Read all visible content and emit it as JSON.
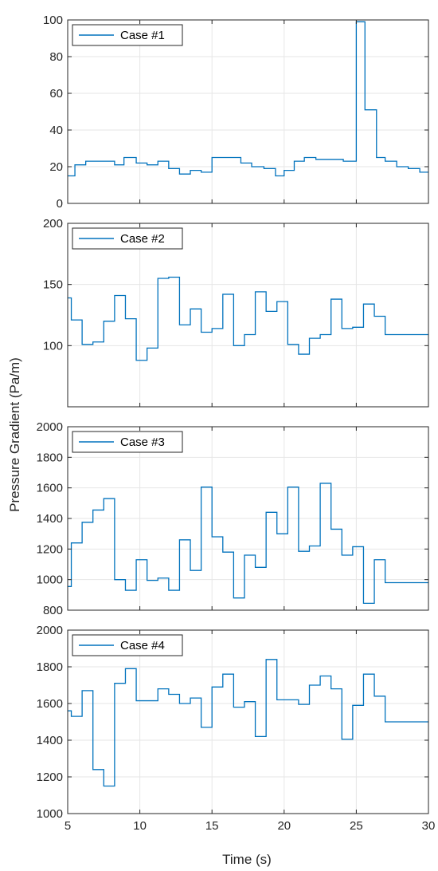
{
  "figure": {
    "ylabel": "Pressure Gradient (Pa/m)",
    "xlabel": "Time (s)",
    "line_color": "#0072BD",
    "grid_color": "#e6e6e6",
    "axis_color": "#262626"
  },
  "chart_data": [
    {
      "type": "line",
      "legend": "Case #1",
      "legend_position": "top-left",
      "grid": true,
      "xlim": [
        5,
        30
      ],
      "ylim": [
        0,
        100
      ],
      "xticks": [
        5,
        10,
        15,
        20,
        25,
        30
      ],
      "yticks": [
        0,
        20,
        40,
        60,
        80,
        100
      ],
      "series": [
        {
          "name": "Case #1",
          "step": true,
          "x": [
            5,
            5.5,
            6.25,
            7.75,
            8.25,
            8.9,
            9.75,
            10.5,
            11.25,
            12,
            12.75,
            13.5,
            14.25,
            15,
            15.75,
            17,
            17.75,
            18.6,
            19.4,
            20,
            20.7,
            21.4,
            22.2,
            23,
            24.1,
            25,
            25.6,
            26.4,
            27,
            27.8,
            28.6,
            29.4,
            30
          ],
          "y": [
            15,
            21,
            23,
            23,
            21,
            25,
            22,
            21,
            23,
            19,
            16,
            18,
            17,
            25,
            25,
            22,
            20,
            19,
            15,
            18,
            23,
            25,
            24,
            24,
            23,
            99,
            51,
            25,
            23,
            20,
            19,
            17,
            17
          ]
        }
      ]
    },
    {
      "type": "line",
      "legend": "Case #2",
      "legend_position": "top-left",
      "grid": true,
      "xlim": [
        5,
        30
      ],
      "ylim": [
        50,
        200
      ],
      "xticks": [
        5,
        10,
        15,
        20,
        25,
        30
      ],
      "yticks": [
        100,
        150,
        200
      ],
      "series": [
        {
          "name": "Case #2",
          "step": true,
          "x": [
            5,
            5.25,
            6,
            6.75,
            7.5,
            8.25,
            9,
            9.75,
            10.5,
            11.25,
            12,
            12.75,
            13.5,
            14.25,
            15,
            15.75,
            16.5,
            17.25,
            18,
            18.75,
            19.5,
            20.25,
            21,
            21.75,
            22.5,
            23.25,
            24,
            24.75,
            25.5,
            26.25,
            27,
            27.75,
            28.5,
            29.25,
            30
          ],
          "y": [
            139,
            121,
            101,
            103,
            120,
            141,
            122,
            88,
            98,
            155,
            156,
            117,
            130,
            111,
            114,
            142,
            100,
            109,
            144,
            128,
            136,
            101,
            93,
            106,
            109,
            138,
            114,
            115,
            134,
            124,
            109,
            109,
            109,
            109,
            109
          ]
        }
      ]
    },
    {
      "type": "line",
      "legend": "Case #3",
      "legend_position": "top-left",
      "grid": true,
      "xlim": [
        5,
        30
      ],
      "ylim": [
        800,
        2000
      ],
      "xticks": [
        5,
        10,
        15,
        20,
        25,
        30
      ],
      "yticks": [
        800,
        1000,
        1200,
        1400,
        1600,
        1800,
        2000
      ],
      "series": [
        {
          "name": "Case #3",
          "step": true,
          "x": [
            5,
            5.25,
            6,
            6.75,
            7.5,
            8.25,
            9,
            9.75,
            10.5,
            11.25,
            12,
            12.75,
            13.5,
            14.25,
            15,
            15.75,
            16.5,
            17.25,
            18,
            18.75,
            19.5,
            20.25,
            21,
            21.75,
            22.5,
            23.25,
            24,
            24.75,
            25.5,
            26.25,
            27,
            27.75,
            28.5,
            29.25,
            30
          ],
          "y": [
            955,
            1240,
            1375,
            1455,
            1530,
            1000,
            930,
            1130,
            995,
            1010,
            930,
            1260,
            1060,
            1605,
            1280,
            1180,
            880,
            1160,
            1080,
            1440,
            1300,
            1605,
            1185,
            1220,
            1630,
            1330,
            1160,
            1215,
            845,
            1130,
            980,
            980,
            980,
            980,
            980
          ]
        }
      ]
    },
    {
      "type": "line",
      "legend": "Case #4",
      "legend_position": "top-left",
      "grid": true,
      "xlim": [
        5,
        30
      ],
      "ylim": [
        1000,
        2000
      ],
      "xticks": [
        5,
        10,
        15,
        20,
        25,
        30
      ],
      "yticks": [
        1000,
        1200,
        1400,
        1600,
        1800,
        2000
      ],
      "xticklabels": true,
      "series": [
        {
          "name": "Case #4",
          "step": true,
          "x": [
            5,
            5.25,
            6,
            6.75,
            7.5,
            8.25,
            9,
            9.75,
            10.5,
            11.25,
            12,
            12.75,
            13.5,
            14.25,
            15,
            15.75,
            16.5,
            17.25,
            18,
            18.75,
            19.5,
            20.25,
            21,
            21.75,
            22.5,
            23.25,
            24,
            24.75,
            25.5,
            26.25,
            27,
            27.75,
            28.5,
            29.25,
            30
          ],
          "y": [
            1560,
            1530,
            1670,
            1240,
            1150,
            1710,
            1790,
            1615,
            1615,
            1680,
            1650,
            1600,
            1630,
            1470,
            1690,
            1760,
            1580,
            1610,
            1420,
            1840,
            1620,
            1620,
            1595,
            1700,
            1750,
            1680,
            1405,
            1590,
            1760,
            1640,
            1500,
            1500,
            1500,
            1500,
            1500
          ]
        }
      ]
    }
  ]
}
